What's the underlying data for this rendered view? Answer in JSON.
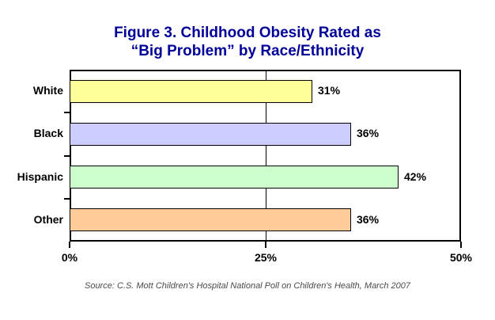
{
  "title": {
    "line1": "Figure 3. Childhood Obesity Rated as",
    "line2": "“Big Problem” by Race/Ethnicity",
    "color": "#000099"
  },
  "source": "Source: C.S. Mott Children's Hospital National Poll on Children's Health, March 2007",
  "chart_data": {
    "type": "bar",
    "orientation": "horizontal",
    "title": "Figure 3. Childhood Obesity Rated as “Big Problem” by Race/Ethnicity",
    "categories": [
      "White",
      "Black",
      "Hispanic",
      "Other"
    ],
    "values": [
      31,
      36,
      42,
      36
    ],
    "value_labels": [
      "31%",
      "36%",
      "42%",
      "36%"
    ],
    "bar_colors": [
      "#FFFF99",
      "#CCCCFF",
      "#CCFFCC",
      "#FFCC99"
    ],
    "bar_border_color": "#000000",
    "xlim": [
      0,
      50
    ],
    "xticks": [
      0,
      25,
      50
    ],
    "xtick_labels": [
      "0%",
      "25%",
      "50%"
    ],
    "xlabel": "",
    "ylabel": "",
    "grid": "single vertical gridline at 25%, behind bars",
    "legend_position": "none",
    "data_labels": "outside end of each bar"
  }
}
